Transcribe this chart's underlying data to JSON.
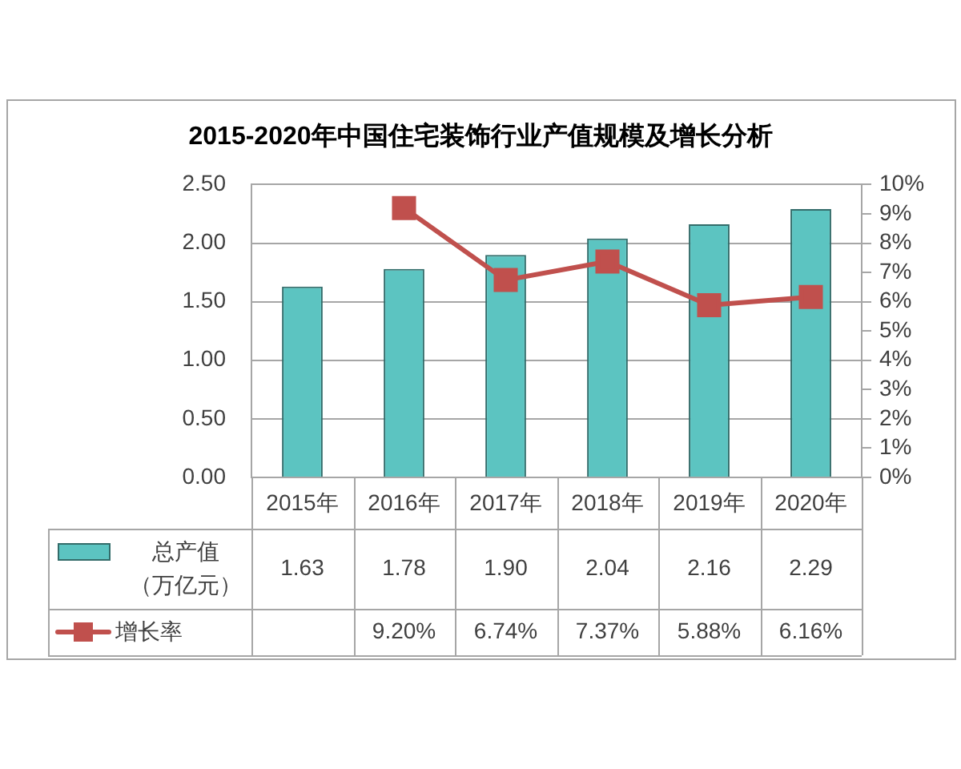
{
  "chart_data": {
    "type": "bar",
    "title": "2015-2020年中国住宅装饰行业产值规模及增长分析",
    "categories": [
      "2015年",
      "2016年",
      "2017年",
      "2018年",
      "2019年",
      "2020年"
    ],
    "series": [
      {
        "name": "总产值（万亿元）",
        "color": "#5cc4c1",
        "values": [
          1.63,
          1.78,
          1.9,
          2.04,
          2.16,
          2.29
        ],
        "value_labels": [
          "1.63",
          "1.78",
          "1.90",
          "2.04",
          "2.16",
          "2.29"
        ]
      },
      {
        "name": "增长率",
        "type": "line",
        "axis": "y2",
        "color": "#c0504d",
        "values": [
          null,
          9.2,
          6.74,
          7.37,
          5.88,
          6.16
        ],
        "value_labels": [
          null,
          "9.20%",
          "6.74%",
          "7.37%",
          "5.88%",
          "6.16%"
        ]
      }
    ],
    "ylim": [
      0,
      2.5
    ],
    "yticks": [
      {
        "value": 0,
        "label": "0.00"
      },
      {
        "value": 0.5,
        "label": "0.50"
      },
      {
        "value": 1,
        "label": "1.00"
      },
      {
        "value": 1.5,
        "label": "1.50"
      },
      {
        "value": 2,
        "label": "2.00"
      },
      {
        "value": 2.5,
        "label": "2.50"
      }
    ],
    "y2lim": [
      0,
      10
    ],
    "y2ticks": [
      {
        "value": 0,
        "label": "0%"
      },
      {
        "value": 1,
        "label": "1%"
      },
      {
        "value": 2,
        "label": "2%"
      },
      {
        "value": 3,
        "label": "3%"
      },
      {
        "value": 4,
        "label": "4%"
      },
      {
        "value": 5,
        "label": "5%"
      },
      {
        "value": 6,
        "label": "6%"
      },
      {
        "value": 7,
        "label": "7%"
      },
      {
        "value": 8,
        "label": "8%"
      },
      {
        "value": 9,
        "label": "9%"
      },
      {
        "value": 10,
        "label": "10%"
      }
    ],
    "grid": "y",
    "legend": "bottom",
    "marker": "square"
  }
}
